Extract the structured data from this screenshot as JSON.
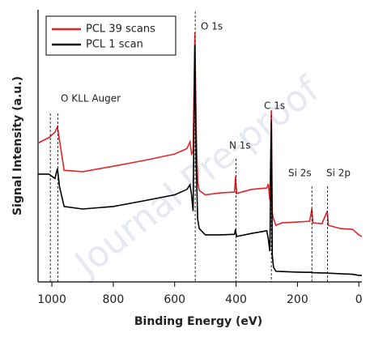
{
  "chart_data": {
    "type": "line",
    "xlabel": "Binding Energy (eV)",
    "ylabel": "Signal Intensity (a.u.)",
    "watermark": "Journal Pre-proof",
    "x": [
      1045,
      1010,
      990,
      982,
      975,
      960,
      900,
      800,
      700,
      600,
      560,
      550,
      545,
      540,
      534,
      530,
      525,
      520,
      500,
      450,
      405,
      402,
      398,
      350,
      300,
      295,
      290,
      285,
      282,
      278,
      270,
      250,
      200,
      160,
      153,
      150,
      120,
      103,
      99,
      60,
      20,
      0,
      -10
    ],
    "series": [
      {
        "name": "PCL 39 scans",
        "color": "#e0262b",
        "values": [
          51,
          53,
          55,
          57,
          52,
          41,
          40.5,
          42.5,
          44.6,
          47,
          49,
          51.5,
          47,
          48,
          91.7,
          56,
          36.6,
          33.6,
          32,
          32.7,
          33,
          38.7,
          32.5,
          34,
          34.5,
          36,
          30,
          63,
          25.6,
          23.2,
          20.8,
          21.7,
          22,
          22.3,
          27,
          21.7,
          21.4,
          26,
          20.8,
          19.6,
          19.3,
          17.3,
          16.7
        ]
      },
      {
        "name": "PCL 1 scan",
        "color": "#000000",
        "values": [
          39.6,
          39.6,
          38,
          41.7,
          35,
          27.7,
          26.8,
          27.7,
          29.8,
          32,
          34,
          35.7,
          32,
          26,
          87,
          44,
          23,
          19.6,
          17.3,
          17.3,
          17.5,
          19.3,
          16.7,
          17.8,
          18.8,
          15.8,
          11.3,
          59,
          9.8,
          5.4,
          3.9,
          3.8,
          3.6,
          3.5,
          3.6,
          3.4,
          3.3,
          3.3,
          3.2,
          3,
          2.8,
          2.4,
          2.4
        ]
      }
    ],
    "annotations": [
      {
        "text": "O KLL Auger",
        "x": [
          1005,
          980
        ]
      },
      {
        "text": "O 1s",
        "x": [
          533
        ]
      },
      {
        "text": "N 1s",
        "x": [
          400
        ]
      },
      {
        "text": "C 1s",
        "x": [
          285
        ]
      },
      {
        "text": "Si 2s",
        "x": [
          153
        ]
      },
      {
        "text": "Si 2p",
        "x": [
          102
        ]
      }
    ],
    "xlim": [
      1045,
      -10
    ],
    "ylim": [
      0,
      100
    ],
    "xticks": [
      1000,
      800,
      600,
      400,
      200,
      0
    ],
    "legend": "upper left"
  }
}
